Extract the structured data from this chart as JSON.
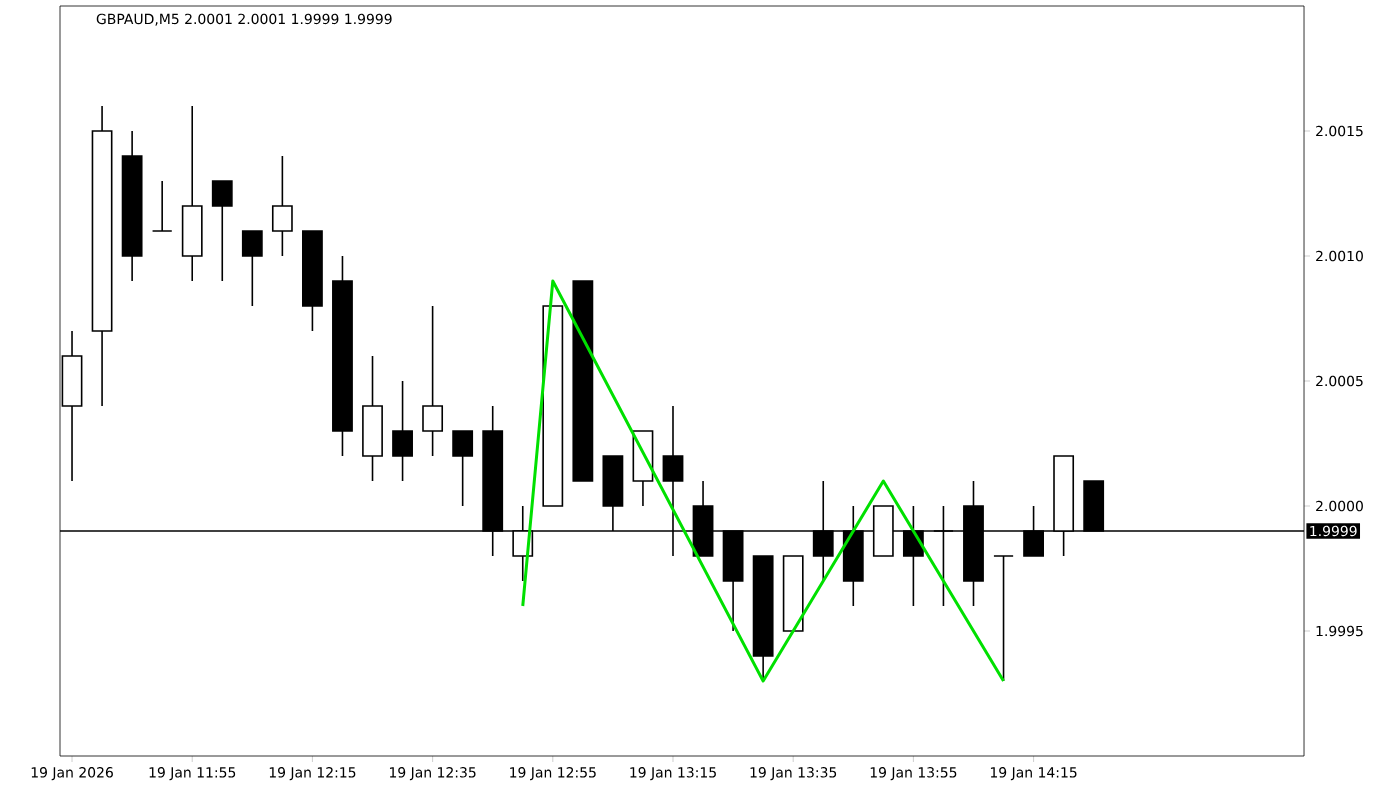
{
  "chart_data": {
    "type": "candlestick",
    "title": "GBPAUD,M5 2.0001 2.0001 1.9999 1.9999",
    "x": [
      "2026-01-19T11:35",
      "2026-01-19T11:40",
      "2026-01-19T11:45",
      "2026-01-19T11:50",
      "2026-01-19T11:55",
      "2026-01-19T12:00",
      "2026-01-19T12:05",
      "2026-01-19T12:10",
      "2026-01-19T12:15",
      "2026-01-19T12:20",
      "2026-01-19T12:25",
      "2026-01-19T12:30",
      "2026-01-19T12:35",
      "2026-01-19T12:40",
      "2026-01-19T12:45",
      "2026-01-19T12:50",
      "2026-01-19T12:55",
      "2026-01-19T13:00",
      "2026-01-19T13:05",
      "2026-01-19T13:10",
      "2026-01-19T13:15",
      "2026-01-19T13:20",
      "2026-01-19T13:25",
      "2026-01-19T13:30",
      "2026-01-19T13:35",
      "2026-01-19T13:40",
      "2026-01-19T13:45",
      "2026-01-19T13:50",
      "2026-01-19T13:55",
      "2026-01-19T14:00",
      "2026-01-19T14:05",
      "2026-01-19T14:10",
      "2026-01-19T14:15",
      "2026-01-19T14:20",
      "2026-01-19T14:25"
    ],
    "ohlc": [
      [
        2.0004,
        2.0007,
        2.0001,
        2.0006
      ],
      [
        2.0007,
        2.0016,
        2.0004,
        2.0015
      ],
      [
        2.0014,
        2.0015,
        2.0009,
        2.001
      ],
      [
        2.0011,
        2.0013,
        2.0011,
        2.0011
      ],
      [
        2.001,
        2.0016,
        2.0009,
        2.0012
      ],
      [
        2.0013,
        2.0013,
        2.0009,
        2.0012
      ],
      [
        2.0011,
        2.0011,
        2.0008,
        2.001
      ],
      [
        2.0011,
        2.0014,
        2.001,
        2.0012
      ],
      [
        2.0011,
        2.0011,
        2.0007,
        2.0008
      ],
      [
        2.0009,
        2.001,
        2.0002,
        2.0003
      ],
      [
        2.0002,
        2.0006,
        2.0001,
        2.0004
      ],
      [
        2.0003,
        2.0005,
        2.0001,
        2.0002
      ],
      [
        2.0003,
        2.0008,
        2.0002,
        2.0004
      ],
      [
        2.0003,
        2.0003,
        2.0,
        2.0002
      ],
      [
        2.0003,
        2.0004,
        1.9998,
        1.9999
      ],
      [
        1.9998,
        2.0,
        1.9997,
        1.9999
      ],
      [
        2.0,
        2.0008,
        2.0,
        2.0008
      ],
      [
        2.0009,
        2.0009,
        2.0001,
        2.0001
      ],
      [
        2.0002,
        2.0002,
        1.9999,
        2.0
      ],
      [
        2.0001,
        2.0003,
        2.0,
        2.0003
      ],
      [
        2.0002,
        2.0004,
        1.9998,
        2.0001
      ],
      [
        2.0,
        2.0001,
        1.9998,
        1.9998
      ],
      [
        1.9999,
        1.9999,
        1.9995,
        1.9997
      ],
      [
        1.9998,
        1.9998,
        1.9993,
        1.9994
      ],
      [
        1.9995,
        1.9998,
        1.9995,
        1.9998
      ],
      [
        1.9999,
        2.0001,
        1.9997,
        1.9998
      ],
      [
        1.9999,
        2.0,
        1.9996,
        1.9997
      ],
      [
        1.9998,
        2.0,
        1.9998,
        2.0
      ],
      [
        1.9999,
        2.0,
        1.9996,
        1.9998
      ],
      [
        1.9999,
        2.0,
        1.9996,
        1.9999
      ],
      [
        2.0,
        2.0001,
        1.9996,
        1.9997
      ],
      [
        1.9998,
        1.9998,
        1.9993,
        1.9998
      ],
      [
        1.9999,
        2.0,
        1.9998,
        1.9998
      ],
      [
        1.9999,
        2.0002,
        1.9998,
        2.0002
      ],
      [
        2.0001,
        2.0001,
        1.9999,
        1.9999
      ]
    ],
    "series": [
      {
        "type": "line",
        "color": "#00e000",
        "x": [
          "2026-01-19T12:50",
          "2026-01-19T12:55",
          "2026-01-19T13:30",
          "2026-01-19T13:50",
          "2026-01-19T14:10"
        ],
        "values": [
          1.9996,
          2.0009,
          1.9993,
          2.0001,
          1.9993
        ]
      }
    ],
    "xlim": [
      "2026-01-19T11:33",
      "2026-01-19T15:00"
    ],
    "xticks": [
      {
        "value": "2026-01-19T11:35",
        "label": "19 Jan 2026"
      },
      {
        "value": "2026-01-19T11:55",
        "label": "19 Jan 11:55"
      },
      {
        "value": "2026-01-19T12:15",
        "label": "19 Jan 12:15"
      },
      {
        "value": "2026-01-19T12:35",
        "label": "19 Jan 12:35"
      },
      {
        "value": "2026-01-19T12:55",
        "label": "19 Jan 12:55"
      },
      {
        "value": "2026-01-19T13:15",
        "label": "19 Jan 13:15"
      },
      {
        "value": "2026-01-19T13:35",
        "label": "19 Jan 13:35"
      },
      {
        "value": "2026-01-19T13:55",
        "label": "19 Jan 13:55"
      },
      {
        "value": "2026-01-19T14:15",
        "label": "19 Jan 14:15"
      }
    ],
    "ylim": [
      1.999,
      2.002
    ],
    "yticks": [
      {
        "value": 1.9995,
        "label": "1.9995"
      },
      {
        "value": 2.0,
        "label": "2.0000"
      },
      {
        "value": 2.0005,
        "label": "2.0005"
      },
      {
        "value": 2.001,
        "label": "2.0010"
      },
      {
        "value": 2.0015,
        "label": "2.0015"
      }
    ],
    "ref_lines": [
      {
        "axis": "y",
        "value": 1.9999,
        "label": "1.9999",
        "color": "#000000"
      }
    ],
    "marker": "none",
    "line_style": "solid"
  }
}
